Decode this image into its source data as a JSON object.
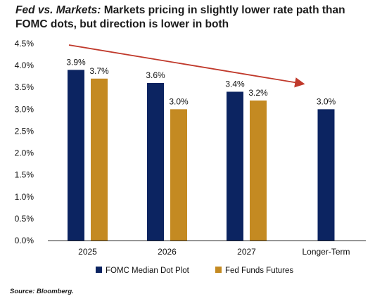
{
  "title_lead": "Fed vs. Markets:",
  "title_rest": " Markets pricing in slightly lower rate path than FOMC dots, but direction is lower in both",
  "source": "Source: Bloomberg.",
  "colors": {
    "fomc": "#0c2461",
    "futures": "#c48a22",
    "arrow": "#c0392b",
    "axis": "#222222",
    "text": "#111111"
  },
  "chart_data": {
    "type": "bar",
    "categories": [
      "2025",
      "2026",
      "2027",
      "Longer-Term"
    ],
    "series": [
      {
        "name": "FOMC Median Dot Plot",
        "values": [
          3.9,
          3.6,
          3.4,
          3.0
        ],
        "labels": [
          "3.9%",
          "3.6%",
          "3.4%",
          "3.0%"
        ]
      },
      {
        "name": "Fed Funds Futures",
        "values": [
          3.7,
          3.0,
          3.2,
          null
        ],
        "labels": [
          "3.7%",
          "3.0%",
          "3.2%",
          ""
        ]
      }
    ],
    "yticks": [
      "0.0%",
      "0.5%",
      "1.0%",
      "1.5%",
      "2.0%",
      "2.5%",
      "3.0%",
      "3.5%",
      "4.0%",
      "4.5%"
    ],
    "ylim": [
      0,
      4.5
    ],
    "legend_position": "bottom",
    "grid": false,
    "annotation": "downward-trend-arrow"
  }
}
